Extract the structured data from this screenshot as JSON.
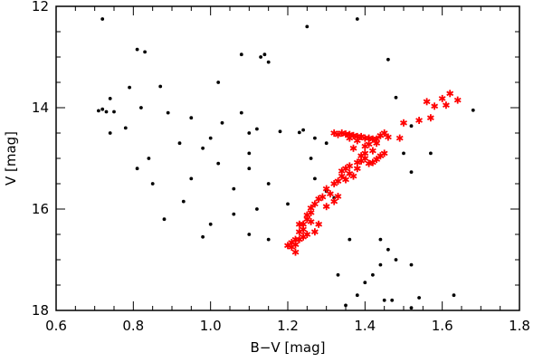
{
  "chart_data": {
    "type": "scatter",
    "title": "",
    "xlabel": "B−V [mag]",
    "ylabel": "V [mag]",
    "xlim": [
      0.6,
      1.8
    ],
    "ylim": [
      18,
      12
    ],
    "y_inverted": true,
    "grid": false,
    "legend": "none",
    "xticks": [
      "0.6",
      "0.8",
      "1.0",
      "1.2",
      "1.4",
      "1.6",
      "1.8"
    ],
    "xtick_values": [
      0.6,
      0.8,
      1.0,
      1.2,
      1.4,
      1.6,
      1.8
    ],
    "yticks": [
      "12",
      "14",
      "16",
      "18"
    ],
    "ytick_values": [
      12,
      14,
      16,
      18
    ],
    "series": [
      {
        "marker": "dot",
        "color": "#000000",
        "points": [
          [
            0.72,
            12.25
          ],
          [
            0.81,
            12.85
          ],
          [
            0.83,
            12.9
          ],
          [
            1.08,
            12.95
          ],
          [
            1.13,
            13.0
          ],
          [
            1.15,
            13.1
          ],
          [
            1.14,
            12.95
          ],
          [
            1.38,
            12.25
          ],
          [
            1.25,
            12.4
          ],
          [
            1.46,
            13.05
          ],
          [
            0.87,
            13.58
          ],
          [
            1.02,
            13.5
          ],
          [
            0.79,
            13.6
          ],
          [
            0.82,
            14.0
          ],
          [
            0.74,
            13.82
          ],
          [
            0.71,
            14.06
          ],
          [
            0.72,
            14.03
          ],
          [
            0.73,
            14.08
          ],
          [
            0.75,
            14.08
          ],
          [
            0.74,
            14.5
          ],
          [
            0.78,
            14.4
          ],
          [
            0.89,
            14.1
          ],
          [
            0.95,
            14.2
          ],
          [
            1.03,
            14.3
          ],
          [
            1.08,
            14.1
          ],
          [
            1.12,
            14.42
          ],
          [
            1.18,
            14.47
          ],
          [
            1.23,
            14.49
          ],
          [
            1.24,
            14.44
          ],
          [
            1.1,
            14.5
          ],
          [
            1.27,
            14.6
          ],
          [
            1.3,
            14.7
          ],
          [
            1.48,
            13.8
          ],
          [
            1.68,
            14.05
          ],
          [
            1.52,
            14.36
          ],
          [
            1.57,
            14.9
          ],
          [
            1.5,
            14.9
          ],
          [
            1.52,
            15.27
          ],
          [
            1.26,
            15.0
          ],
          [
            1.27,
            15.4
          ],
          [
            1.1,
            15.2
          ],
          [
            1.02,
            15.1
          ],
          [
            0.98,
            14.8
          ],
          [
            0.95,
            15.4
          ],
          [
            1.06,
            15.6
          ],
          [
            1.3,
            15.65
          ],
          [
            1.32,
            15.78
          ],
          [
            1.15,
            15.5
          ],
          [
            1.2,
            15.9
          ],
          [
            1.12,
            16.0
          ],
          [
            1.06,
            16.1
          ],
          [
            1.25,
            16.5
          ],
          [
            1.36,
            16.6
          ],
          [
            1.44,
            16.6
          ],
          [
            1.48,
            17.0
          ],
          [
            1.52,
            17.1
          ],
          [
            1.46,
            16.8
          ],
          [
            1.4,
            17.45
          ],
          [
            1.38,
            17.7
          ],
          [
            1.45,
            17.8
          ],
          [
            1.47,
            17.8
          ],
          [
            1.54,
            17.75
          ],
          [
            1.63,
            17.7
          ],
          [
            1.52,
            17.95
          ],
          [
            1.35,
            17.9
          ],
          [
            1.42,
            17.3
          ],
          [
            1.33,
            17.3
          ],
          [
            1.44,
            17.1
          ],
          [
            1.1,
            16.5
          ],
          [
            1.15,
            16.6
          ],
          [
            1.0,
            16.3
          ],
          [
            0.98,
            16.55
          ],
          [
            0.93,
            15.85
          ],
          [
            0.88,
            16.2
          ],
          [
            0.85,
            15.5
          ],
          [
            0.84,
            15.0
          ],
          [
            0.81,
            15.2
          ],
          [
            0.92,
            14.7
          ],
          [
            1.0,
            14.6
          ],
          [
            1.1,
            14.9
          ]
        ]
      },
      {
        "marker": "asterisk",
        "color": "#ff0000",
        "points": [
          [
            1.62,
            13.72
          ],
          [
            1.64,
            13.85
          ],
          [
            1.6,
            13.82
          ],
          [
            1.61,
            13.95
          ],
          [
            1.56,
            13.88
          ],
          [
            1.57,
            14.2
          ],
          [
            1.58,
            13.97
          ],
          [
            1.54,
            14.25
          ],
          [
            1.5,
            14.3
          ],
          [
            1.49,
            14.6
          ],
          [
            1.46,
            14.58
          ],
          [
            1.44,
            14.55
          ],
          [
            1.43,
            14.62
          ],
          [
            1.43,
            14.7
          ],
          [
            1.45,
            14.5
          ],
          [
            1.41,
            14.72
          ],
          [
            1.42,
            14.85
          ],
          [
            1.4,
            14.76
          ],
          [
            1.38,
            14.65
          ],
          [
            1.32,
            14.5
          ],
          [
            1.33,
            14.53
          ],
          [
            1.34,
            14.5
          ],
          [
            1.35,
            14.52
          ],
          [
            1.36,
            14.53
          ],
          [
            1.37,
            14.55
          ],
          [
            1.38,
            14.57
          ],
          [
            1.39,
            14.57
          ],
          [
            1.41,
            14.6
          ],
          [
            1.42,
            14.62
          ],
          [
            1.36,
            14.6
          ],
          [
            1.44,
            14.95
          ],
          [
            1.43,
            15.02
          ],
          [
            1.42,
            15.08
          ],
          [
            1.41,
            15.1
          ],
          [
            1.4,
            15.0
          ],
          [
            1.39,
            15.05
          ],
          [
            1.4,
            14.9
          ],
          [
            1.38,
            15.08
          ],
          [
            1.36,
            15.15
          ],
          [
            1.35,
            15.2
          ],
          [
            1.34,
            15.25
          ],
          [
            1.34,
            15.35
          ],
          [
            1.35,
            15.42
          ],
          [
            1.33,
            15.45
          ],
          [
            1.32,
            15.5
          ],
          [
            1.3,
            15.6
          ],
          [
            1.31,
            15.7
          ],
          [
            1.29,
            15.76
          ],
          [
            1.28,
            15.8
          ],
          [
            1.27,
            15.9
          ],
          [
            1.26,
            15.98
          ],
          [
            1.26,
            16.07
          ],
          [
            1.25,
            16.12
          ],
          [
            1.25,
            16.2
          ],
          [
            1.24,
            16.3
          ],
          [
            1.24,
            16.4
          ],
          [
            1.23,
            16.45
          ],
          [
            1.23,
            16.6
          ],
          [
            1.22,
            16.7
          ],
          [
            1.21,
            16.75
          ],
          [
            1.2,
            16.72
          ],
          [
            1.22,
            16.85
          ],
          [
            1.24,
            16.55
          ],
          [
            1.25,
            16.5
          ],
          [
            1.27,
            16.45
          ],
          [
            1.28,
            16.3
          ],
          [
            1.26,
            16.25
          ],
          [
            1.23,
            16.3
          ],
          [
            1.22,
            16.6
          ],
          [
            1.21,
            16.66
          ],
          [
            1.3,
            15.95
          ],
          [
            1.32,
            15.85
          ],
          [
            1.33,
            15.75
          ],
          [
            1.36,
            15.3
          ],
          [
            1.37,
            15.35
          ],
          [
            1.38,
            15.2
          ],
          [
            1.39,
            14.95
          ],
          [
            1.4,
            14.6
          ],
          [
            1.37,
            14.8
          ],
          [
            1.45,
            14.9
          ]
        ]
      }
    ]
  }
}
